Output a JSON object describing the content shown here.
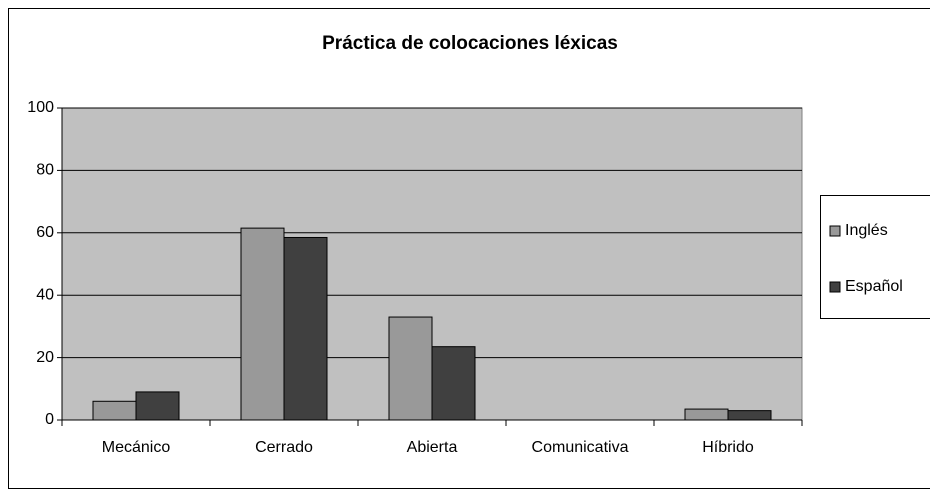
{
  "chart_data": {
    "type": "bar",
    "title": "Práctica de colocaciones léxicas",
    "categories": [
      "Mecánico",
      "Cerrado",
      "Abierta",
      "Comunicativa",
      "Híbrido"
    ],
    "series": [
      {
        "name": "Inglés",
        "color": "#999999",
        "values": [
          6,
          61.5,
          33,
          0,
          3.5
        ]
      },
      {
        "name": "Español",
        "color": "#404040",
        "values": [
          9,
          58.5,
          23.5,
          0,
          3
        ]
      }
    ],
    "ylim": [
      0,
      100
    ],
    "yticks": [
      0,
      20,
      40,
      60,
      80,
      100
    ],
    "grid": true,
    "legend": "right"
  }
}
